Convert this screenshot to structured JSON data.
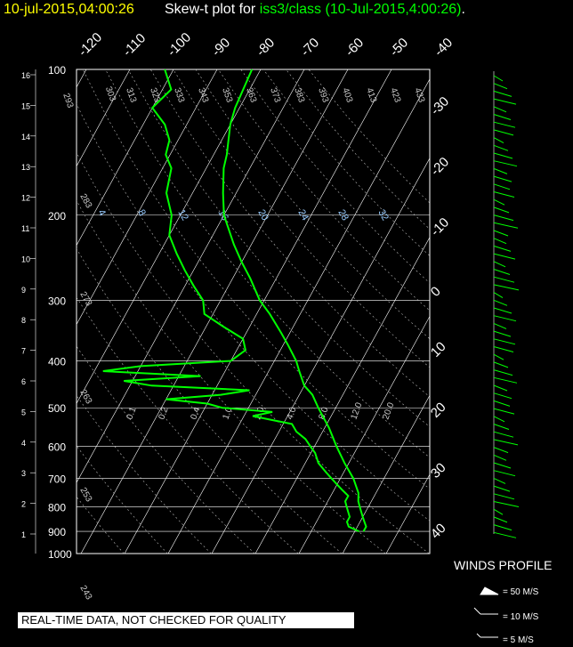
{
  "header": {
    "date": "10-jul-2015,04:00:26",
    "title_prefix": "Skew-t plot for ",
    "station": "iss3/class",
    "time": "(10-Jul-2015,4:00:26)",
    "suffix": "."
  },
  "disclaimer": "REAL-TIME DATA, NOT CHECKED FOR QUALITY",
  "winds": {
    "title": "WINDS PROFILE",
    "legend": [
      "= 50 M/S",
      "= 10 M/S",
      "= 5 M/S"
    ]
  },
  "colors": {
    "background": "#000000",
    "profile": "#00ff00",
    "grid": "#ffffff",
    "date": "#ffff00"
  },
  "chart_data": {
    "type": "line",
    "pressure_ticks": [
      100,
      200,
      300,
      400,
      500,
      600,
      700,
      800,
      900,
      1000
    ],
    "height_km_ticks": [
      1,
      2,
      3,
      4,
      5,
      6,
      7,
      8,
      9,
      10,
      11,
      12,
      13,
      14,
      15,
      16
    ],
    "temp_top_labels": [
      "-120",
      "-110",
      "-100",
      "-90",
      "-80",
      "-70",
      "-60",
      "-50",
      "-40"
    ],
    "temp_right_labels": [
      "-30",
      "-20",
      "-10",
      "0",
      "10",
      "20",
      "30",
      "40"
    ],
    "theta_labels": [
      "293",
      "303",
      "313",
      "323",
      "333",
      "343",
      "353",
      "363",
      "373",
      "383",
      "393",
      "403",
      "413",
      "423",
      "433"
    ],
    "theta_left_labels": [
      "283",
      "273",
      "263",
      "253",
      "243"
    ],
    "mixing_ratio_labels": [
      "4",
      "8",
      "12",
      "16",
      "20",
      "24",
      "28",
      "32"
    ],
    "mixing_ratio_labels_low": [
      "0.1",
      "0.2",
      "0.4",
      "1.0",
      "2.0",
      "4.0",
      "8.0",
      "12.0",
      "20.0"
    ],
    "series": [
      {
        "values": [
          [
            900,
            22
          ],
          [
            880,
            22
          ],
          [
            860,
            21
          ],
          [
            840,
            20
          ],
          [
            820,
            19
          ],
          [
            800,
            18
          ],
          [
            780,
            17
          ],
          [
            750,
            16
          ],
          [
            700,
            13
          ],
          [
            650,
            9
          ],
          [
            600,
            5
          ],
          [
            550,
            1
          ],
          [
            500,
            -4
          ],
          [
            470,
            -7
          ],
          [
            450,
            -10
          ],
          [
            420,
            -13
          ],
          [
            400,
            -15
          ],
          [
            370,
            -19
          ],
          [
            350,
            -22
          ],
          [
            320,
            -27
          ],
          [
            300,
            -31
          ],
          [
            270,
            -36
          ],
          [
            250,
            -40
          ],
          [
            230,
            -44
          ],
          [
            200,
            -50
          ],
          [
            180,
            -53
          ],
          [
            160,
            -56
          ],
          [
            150,
            -57
          ],
          [
            130,
            -60
          ],
          [
            120,
            -61
          ],
          [
            100,
            -62
          ]
        ]
      },
      {
        "values": [
          [
            900,
            21
          ],
          [
            880,
            18
          ],
          [
            860,
            17
          ],
          [
            840,
            17
          ],
          [
            820,
            16
          ],
          [
            800,
            15
          ],
          [
            780,
            14
          ],
          [
            760,
            14
          ],
          [
            740,
            12
          ],
          [
            720,
            10
          ],
          [
            700,
            8
          ],
          [
            680,
            6
          ],
          [
            650,
            3
          ],
          [
            620,
            1
          ],
          [
            600,
            -1
          ],
          [
            580,
            -3
          ],
          [
            560,
            -6
          ],
          [
            540,
            -8
          ],
          [
            530,
            -13
          ],
          [
            520,
            -18
          ],
          [
            510,
            -14
          ],
          [
            500,
            -26
          ],
          [
            490,
            -30
          ],
          [
            480,
            -40
          ],
          [
            470,
            -28
          ],
          [
            460,
            -22
          ],
          [
            450,
            -45
          ],
          [
            440,
            -52
          ],
          [
            430,
            -35
          ],
          [
            420,
            -58
          ],
          [
            410,
            -50
          ],
          [
            400,
            -30
          ],
          [
            380,
            -28
          ],
          [
            360,
            -30
          ],
          [
            340,
            -36
          ],
          [
            320,
            -42
          ],
          [
            300,
            -44
          ],
          [
            280,
            -48
          ],
          [
            260,
            -52
          ],
          [
            240,
            -56
          ],
          [
            220,
            -60
          ],
          [
            200,
            -62
          ],
          [
            180,
            -66
          ],
          [
            160,
            -68
          ],
          [
            150,
            -71
          ],
          [
            140,
            -72
          ],
          [
            130,
            -75
          ],
          [
            120,
            -80
          ],
          [
            110,
            -78
          ],
          [
            100,
            -82
          ]
        ]
      }
    ]
  }
}
